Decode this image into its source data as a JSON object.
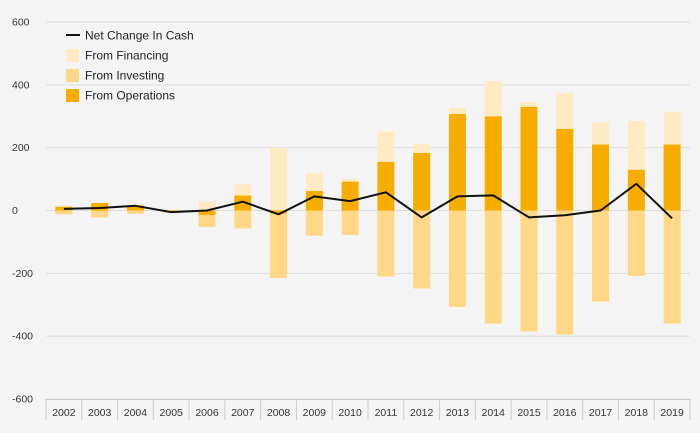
{
  "colors": {
    "background": "#f4f4f4",
    "grid": "#dddddd",
    "financing": "#ffeac4",
    "investing": "#fed886",
    "operations": "#f7ac00",
    "net_line": "#111111",
    "axis_text": "#333333"
  },
  "legend": {
    "net": "Net Change In Cash",
    "financing": "From Financing",
    "investing": "From Investing",
    "operations": "From Operations"
  },
  "chart_data": {
    "type": "bar",
    "stacked": true,
    "categories": [
      "2002",
      "2003",
      "2004",
      "2005",
      "2006",
      "2007",
      "2008",
      "2009",
      "2010",
      "2011",
      "2012",
      "2013",
      "2014",
      "2015",
      "2016",
      "2017",
      "2018",
      "2019"
    ],
    "yticks": [
      "600",
      "400",
      "200",
      "0",
      "-200",
      "-400",
      "-600"
    ],
    "ylim": [
      -600,
      600
    ],
    "grid": true,
    "legend_position": "top-left",
    "series": [
      {
        "name": "From Operations",
        "type": "bar",
        "values": [
          12,
          24,
          16,
          -2,
          -15,
          48,
          -10,
          62,
          92,
          155,
          183,
          307,
          300,
          330,
          260,
          210,
          130,
          210
        ]
      },
      {
        "name": "From Investing",
        "type": "bar",
        "values": [
          -12,
          -22,
          -10,
          -5,
          -37,
          -57,
          -205,
          -80,
          -78,
          -210,
          -248,
          -307,
          -360,
          -385,
          -395,
          -290,
          -208,
          -360
        ]
      },
      {
        "name": "From Financing",
        "type": "bar",
        "values": [
          5,
          0,
          2,
          2,
          30,
          35,
          200,
          58,
          8,
          97,
          28,
          20,
          112,
          15,
          115,
          70,
          155,
          105
        ]
      },
      {
        "name": "Net Change In Cash",
        "type": "line",
        "values": [
          5,
          8,
          15,
          -5,
          0,
          28,
          -12,
          45,
          30,
          58,
          -22,
          45,
          48,
          -22,
          -15,
          0,
          85,
          -25
        ]
      }
    ]
  }
}
